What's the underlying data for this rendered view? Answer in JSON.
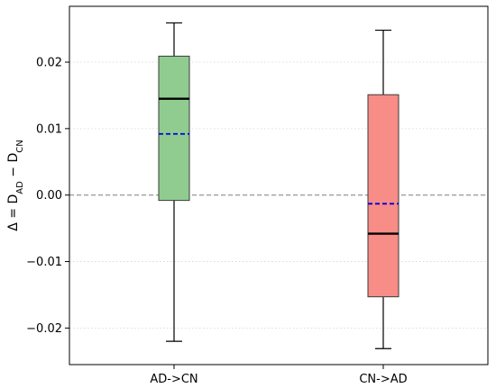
{
  "chart_data": {
    "type": "box",
    "categories": [
      "AD->CN",
      "CN->AD"
    ],
    "ylabel": {
      "prefix": "Δ = D",
      "sub1": "AD",
      "mid": " − D",
      "sub2": "CN"
    },
    "ylim": [
      -0.0255,
      0.0284
    ],
    "yticks": [
      -0.02,
      -0.01,
      0.0,
      0.01,
      0.02
    ],
    "ytick_labels": [
      "−0.02",
      "−0.01",
      "0.00",
      "0.01",
      "0.02"
    ],
    "grid": true,
    "reference_line": 0.0,
    "boxes": [
      {
        "category": "AD->CN",
        "whisker_low": -0.022,
        "q1": -0.0008,
        "median": 0.0145,
        "mean": 0.0092,
        "q3": 0.0209,
        "whisker_high": 0.0259,
        "color": "#90cc90"
      },
      {
        "category": "CN->AD",
        "whisker_low": -0.0231,
        "q1": -0.0153,
        "median": -0.0058,
        "mean": -0.0013,
        "q3": 0.0151,
        "whisker_high": 0.0248,
        "color": "#f88c86"
      }
    ],
    "mean_line_color": "#0000dd",
    "median_line_color": "#000000"
  }
}
